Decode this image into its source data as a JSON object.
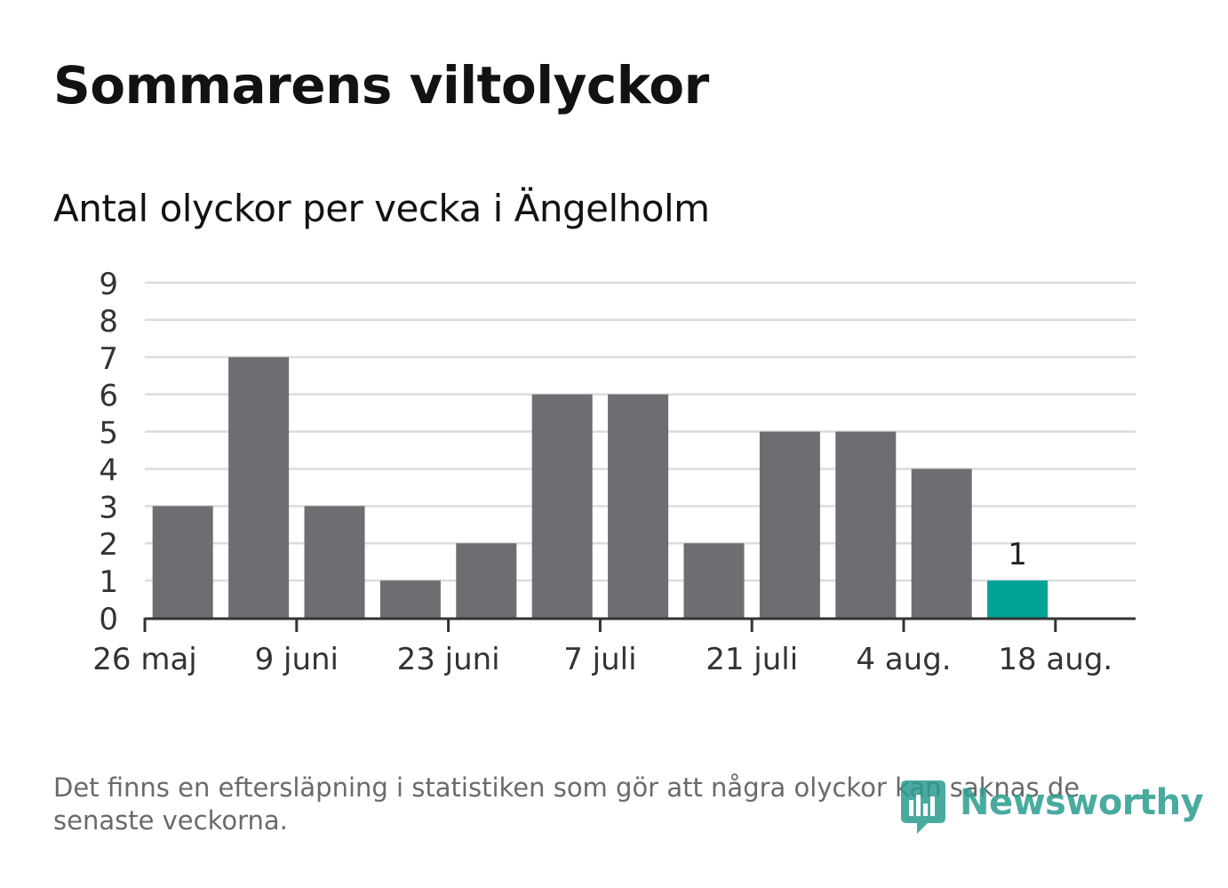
{
  "title": "Sommarens viltolyckor",
  "subtitle": "Antal olyckor per vecka i Ängelholm",
  "footnote": "Det finns en eftersläpning i statistiken som gör att några olyckor kan saknas de senaste veckorna.",
  "logo": {
    "text": "Newsworthy",
    "icon": "newsworthy-logo-icon"
  },
  "colors": {
    "bar": "#6e6d72",
    "highlight": "#00a396",
    "grid": "#dcdcdc",
    "axis": "#333333",
    "logo": "#2a9d8f"
  },
  "chart_data": {
    "type": "bar",
    "x": [
      "2019-06-02",
      "2019-06-09",
      "2019-06-16",
      "2019-06-23",
      "2019-06-30",
      "2019-07-07",
      "2019-07-14",
      "2019-07-21",
      "2019-07-28",
      "2019-08-04",
      "2019-08-11",
      "2019-08-18"
    ],
    "values": [
      3,
      7,
      3,
      1,
      2,
      6,
      6,
      2,
      5,
      5,
      4,
      1
    ],
    "highlight_index": 11,
    "data_labels": [
      {
        "index": 11,
        "text": "1"
      }
    ],
    "xlabel": "",
    "ylabel": "",
    "ylim": [
      0,
      9
    ],
    "yticks": [
      "0",
      "1",
      "2",
      "3",
      "4",
      "5",
      "6",
      "7",
      "8",
      "9"
    ],
    "xticks": [
      {
        "label": "26 maj",
        "date": "2019-05-26"
      },
      {
        "label": "9 juni",
        "date": "2019-06-09"
      },
      {
        "label": "23 juni",
        "date": "2019-06-23"
      },
      {
        "label": "7 juli",
        "date": "2019-07-07"
      },
      {
        "label": "21 juli",
        "date": "2019-07-21"
      },
      {
        "label": "4 aug.",
        "date": "2019-08-04"
      },
      {
        "label": "18 aug.",
        "date": "2019-08-18"
      }
    ],
    "grid": true
  }
}
